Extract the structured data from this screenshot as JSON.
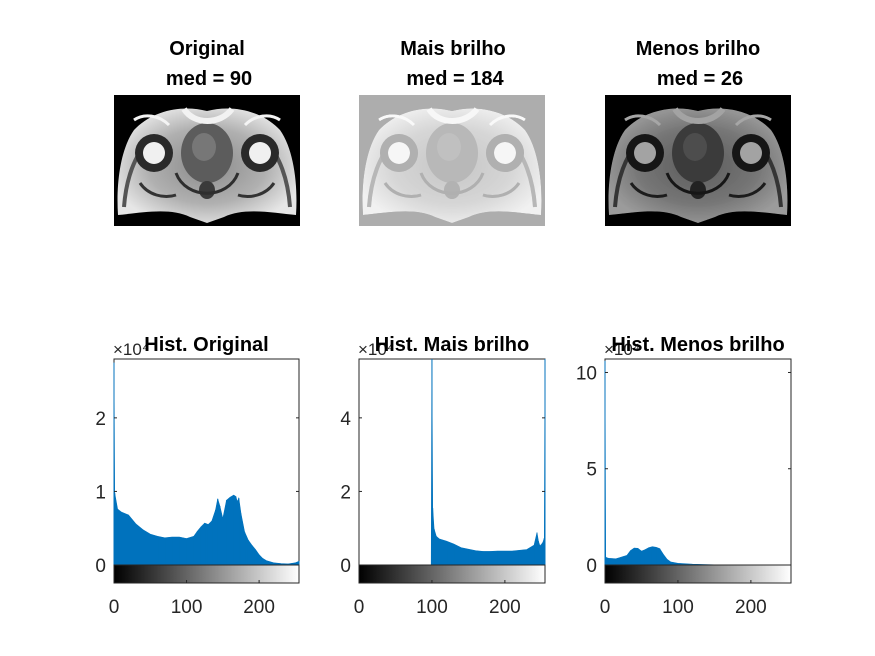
{
  "figure": {
    "images": [
      {
        "title_line1": "Original",
        "title_line2": "med = 90",
        "tone": "original"
      },
      {
        "title_line1": "Mais brilho",
        "title_line2": "med = 184",
        "tone": "bright"
      },
      {
        "title_line1": "Menos brilho",
        "title_line2": "med = 26",
        "tone": "dark"
      }
    ]
  },
  "colors": {
    "bar": "#0072BD",
    "axis": "#262626",
    "background": "#ffffff"
  },
  "chart_data": [
    {
      "type": "bar",
      "title": "Hist. Original",
      "exponent_label": "×10⁴",
      "xlim": [
        0,
        255
      ],
      "ylim": [
        0,
        28000
      ],
      "xticks": [
        0,
        100,
        200
      ],
      "yticks": [
        0,
        10000,
        20000
      ],
      "yticklabels": [
        "0",
        "1",
        "2"
      ],
      "grid": false,
      "colorbar": "grayscale",
      "x": [
        0,
        1,
        5,
        10,
        20,
        30,
        40,
        50,
        60,
        70,
        80,
        90,
        100,
        110,
        115,
        120,
        125,
        130,
        135,
        140,
        143,
        146,
        150,
        155,
        160,
        165,
        168,
        170,
        172,
        175,
        180,
        185,
        190,
        195,
        200,
        205,
        210,
        220,
        230,
        240,
        250,
        255
      ],
      "values": [
        27500,
        9800,
        7600,
        7200,
        6800,
        5600,
        4800,
        4200,
        3900,
        3700,
        3800,
        3800,
        3600,
        3900,
        4600,
        5200,
        5700,
        5500,
        6000,
        7500,
        9000,
        8000,
        6300,
        8800,
        9200,
        9500,
        9300,
        8600,
        9100,
        7000,
        4500,
        3400,
        2700,
        2100,
        1400,
        900,
        600,
        300,
        200,
        150,
        300,
        500
      ]
    },
    {
      "type": "bar",
      "title": "Hist. Mais brilho",
      "exponent_label": "×10⁴",
      "xlim": [
        0,
        255
      ],
      "ylim": [
        0,
        56000
      ],
      "xticks": [
        0,
        100,
        200
      ],
      "yticks": [
        0,
        20000,
        40000
      ],
      "yticklabels": [
        "0",
        "2",
        "4"
      ],
      "grid": false,
      "colorbar": "grayscale",
      "x": [
        0,
        99,
        100,
        101,
        103,
        106,
        110,
        120,
        130,
        140,
        150,
        160,
        170,
        180,
        190,
        200,
        210,
        220,
        230,
        240,
        244,
        246,
        248,
        250,
        252,
        254,
        255
      ],
      "values": [
        0,
        0,
        56000,
        15500,
        9800,
        7800,
        7100,
        6500,
        5700,
        4700,
        4300,
        3900,
        3700,
        3700,
        3800,
        3800,
        3800,
        4000,
        4200,
        5400,
        8800,
        6500,
        5200,
        5600,
        6100,
        7300,
        56000
      ]
    },
    {
      "type": "bar",
      "title": "Hist. Menos brilho",
      "exponent_label": "×10⁴",
      "xlim": [
        0,
        255
      ],
      "ylim": [
        0,
        107000
      ],
      "xticks": [
        0,
        100,
        200
      ],
      "yticks": [
        0,
        50000,
        100000
      ],
      "yticklabels": [
        "0",
        "5",
        "10"
      ],
      "grid": false,
      "colorbar": "grayscale",
      "x": [
        0,
        1,
        2,
        5,
        10,
        15,
        20,
        25,
        30,
        35,
        40,
        45,
        50,
        55,
        60,
        65,
        70,
        75,
        80,
        85,
        90,
        100,
        120,
        150,
        200,
        255
      ],
      "values": [
        106000,
        4200,
        3800,
        3500,
        3400,
        3200,
        3800,
        4400,
        5000,
        7500,
        8800,
        8700,
        7200,
        8000,
        9000,
        9500,
        9200,
        8500,
        5500,
        3000,
        1600,
        900,
        400,
        100,
        0,
        0
      ]
    }
  ]
}
